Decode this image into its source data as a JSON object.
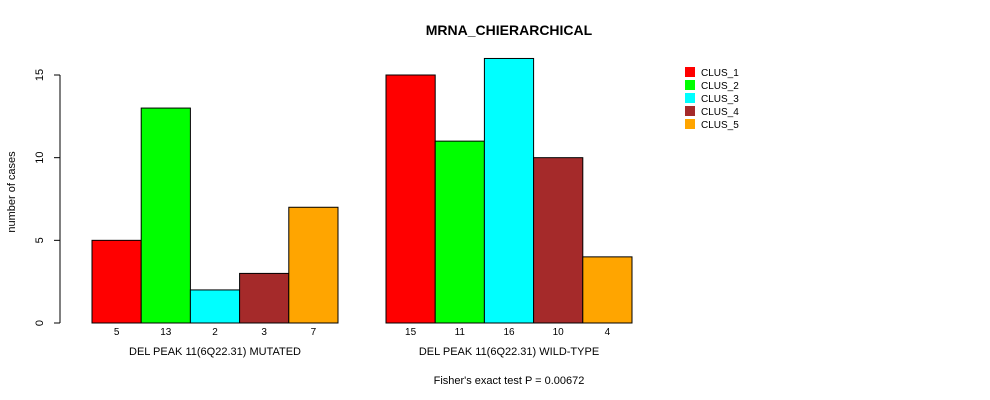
{
  "chart_data": {
    "type": "bar",
    "title": "MRNA_CHIERARCHICAL",
    "ylabel": "number of cases",
    "ylim": [
      0,
      15
    ],
    "yticks": [
      0,
      5,
      10,
      15
    ],
    "footnote": "Fisher's exact test P = 0.00672",
    "colors": [
      "#ff0000",
      "#00ff00",
      "#00ffff",
      "#a52a2a",
      "#ffa500"
    ],
    "series_names": [
      "CLUS_1",
      "CLUS_2",
      "CLUS_3",
      "CLUS_4",
      "CLUS_5"
    ],
    "groups": [
      {
        "label": "DEL PEAK 11(6Q22.31) MUTATED",
        "values": [
          5,
          13,
          2,
          3,
          7
        ],
        "value_labels": [
          "5",
          "13",
          "2",
          "3",
          "7"
        ]
      },
      {
        "label": "DEL PEAK 11(6Q22.31) WILD-TYPE",
        "values": [
          15,
          11,
          16,
          10,
          4
        ],
        "value_labels": [
          "15",
          "11",
          "16",
          "10",
          "4"
        ]
      }
    ]
  }
}
